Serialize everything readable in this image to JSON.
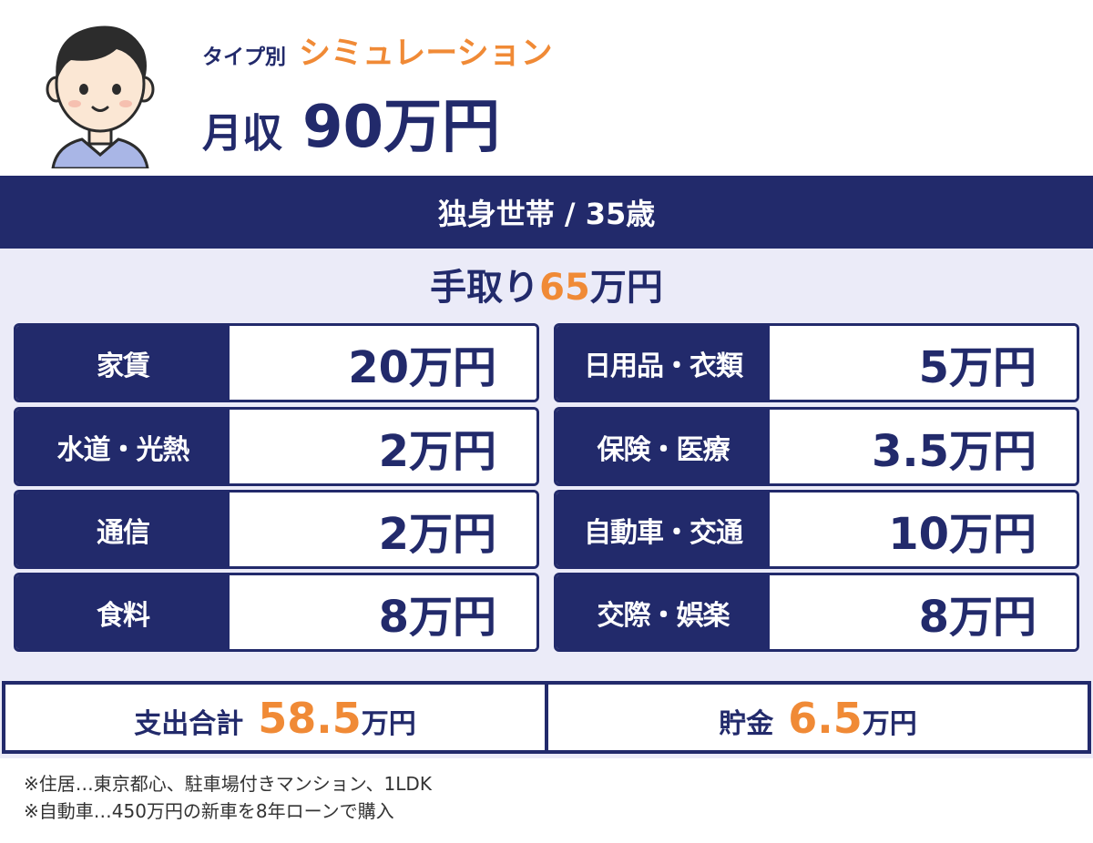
{
  "header": {
    "kicker_prefix": "タイプ別",
    "kicker_highlight": "シミュレーション",
    "income_label": "月収",
    "income_value": "90万円"
  },
  "household": "独身世帯 / 35歳",
  "take_home": {
    "label": "手取り",
    "amount": "65",
    "unit": "万円"
  },
  "expenses": {
    "left": [
      {
        "label": "家賃",
        "value": "20万円"
      },
      {
        "label": "水道・光熱",
        "value": "2万円"
      },
      {
        "label": "通信",
        "value": "2万円"
      },
      {
        "label": "食料",
        "value": "8万円"
      }
    ],
    "right": [
      {
        "label": "日用品・衣類",
        "value": "5万円"
      },
      {
        "label": "保険・医療",
        "value": "3.5万円"
      },
      {
        "label": "自動車・交通",
        "value": "10万円"
      },
      {
        "label": "交際・娯楽",
        "value": "8万円"
      }
    ]
  },
  "totals": {
    "spend_label": "支出合計",
    "spend_amount": "58.5",
    "spend_unit": "万円",
    "savings_label": "貯金",
    "savings_amount": "6.5",
    "savings_unit": "万円"
  },
  "notes": [
    "※住居…東京都心、駐車場付きマンション、1LDK",
    "※自動車…450万円の新車を8年ローンで購入"
  ],
  "colors": {
    "navy": "#222a6b",
    "accent": "#f08a36",
    "panel_bg": "#ebebf8",
    "skin": "#fbe7d4",
    "hair": "#2c2c2c",
    "shirt": "#a9b6e6"
  },
  "icons": {
    "avatar": "person-avatar-icon"
  }
}
